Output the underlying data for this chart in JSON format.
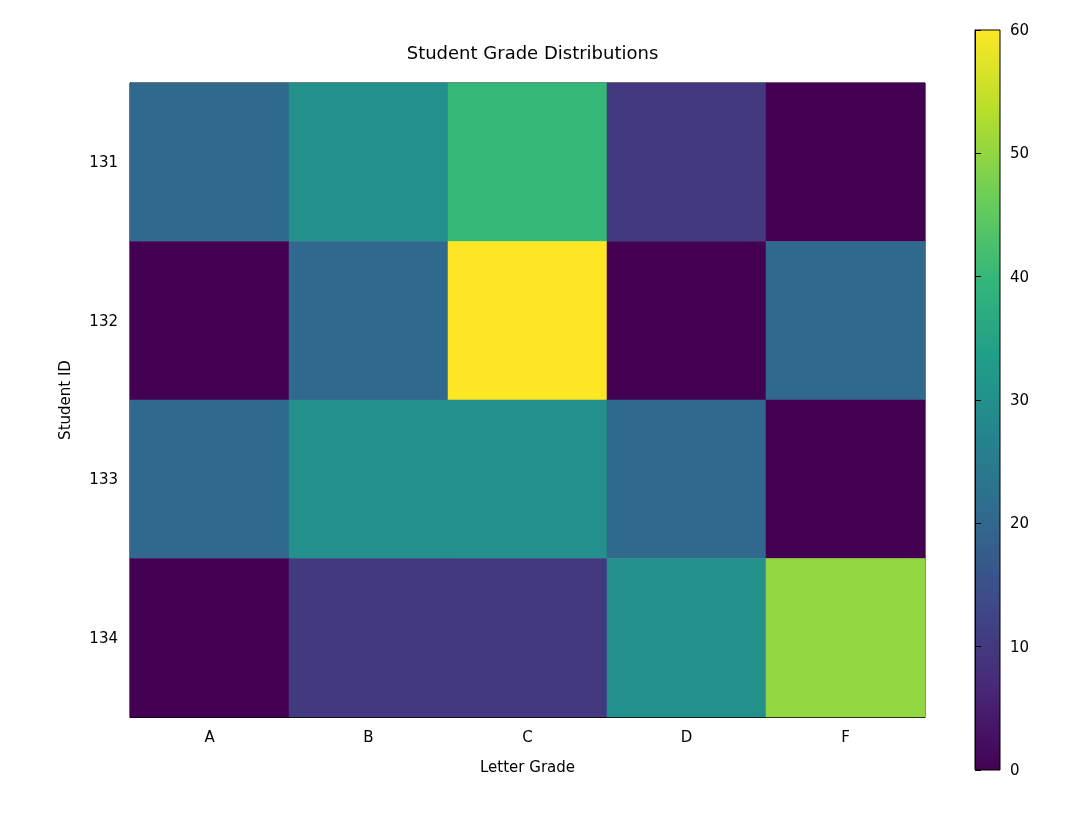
{
  "chart_data": {
    "type": "heatmap",
    "title": "Student Grade Distributions",
    "xlabel": "Letter Grade",
    "ylabel": "Student ID",
    "categories": [
      "A",
      "B",
      "C",
      "D",
      "F"
    ],
    "y_categories": [
      "131",
      "132",
      "133",
      "134"
    ],
    "cells": [
      [
        20,
        30,
        40,
        10,
        0
      ],
      [
        0,
        20,
        60,
        0,
        20
      ],
      [
        20,
        30,
        30,
        20,
        0
      ],
      [
        0,
        10,
        10,
        30,
        50
      ]
    ],
    "clim": [
      0,
      60
    ],
    "cticks": [
      0,
      10,
      20,
      30,
      40,
      50,
      60
    ]
  }
}
